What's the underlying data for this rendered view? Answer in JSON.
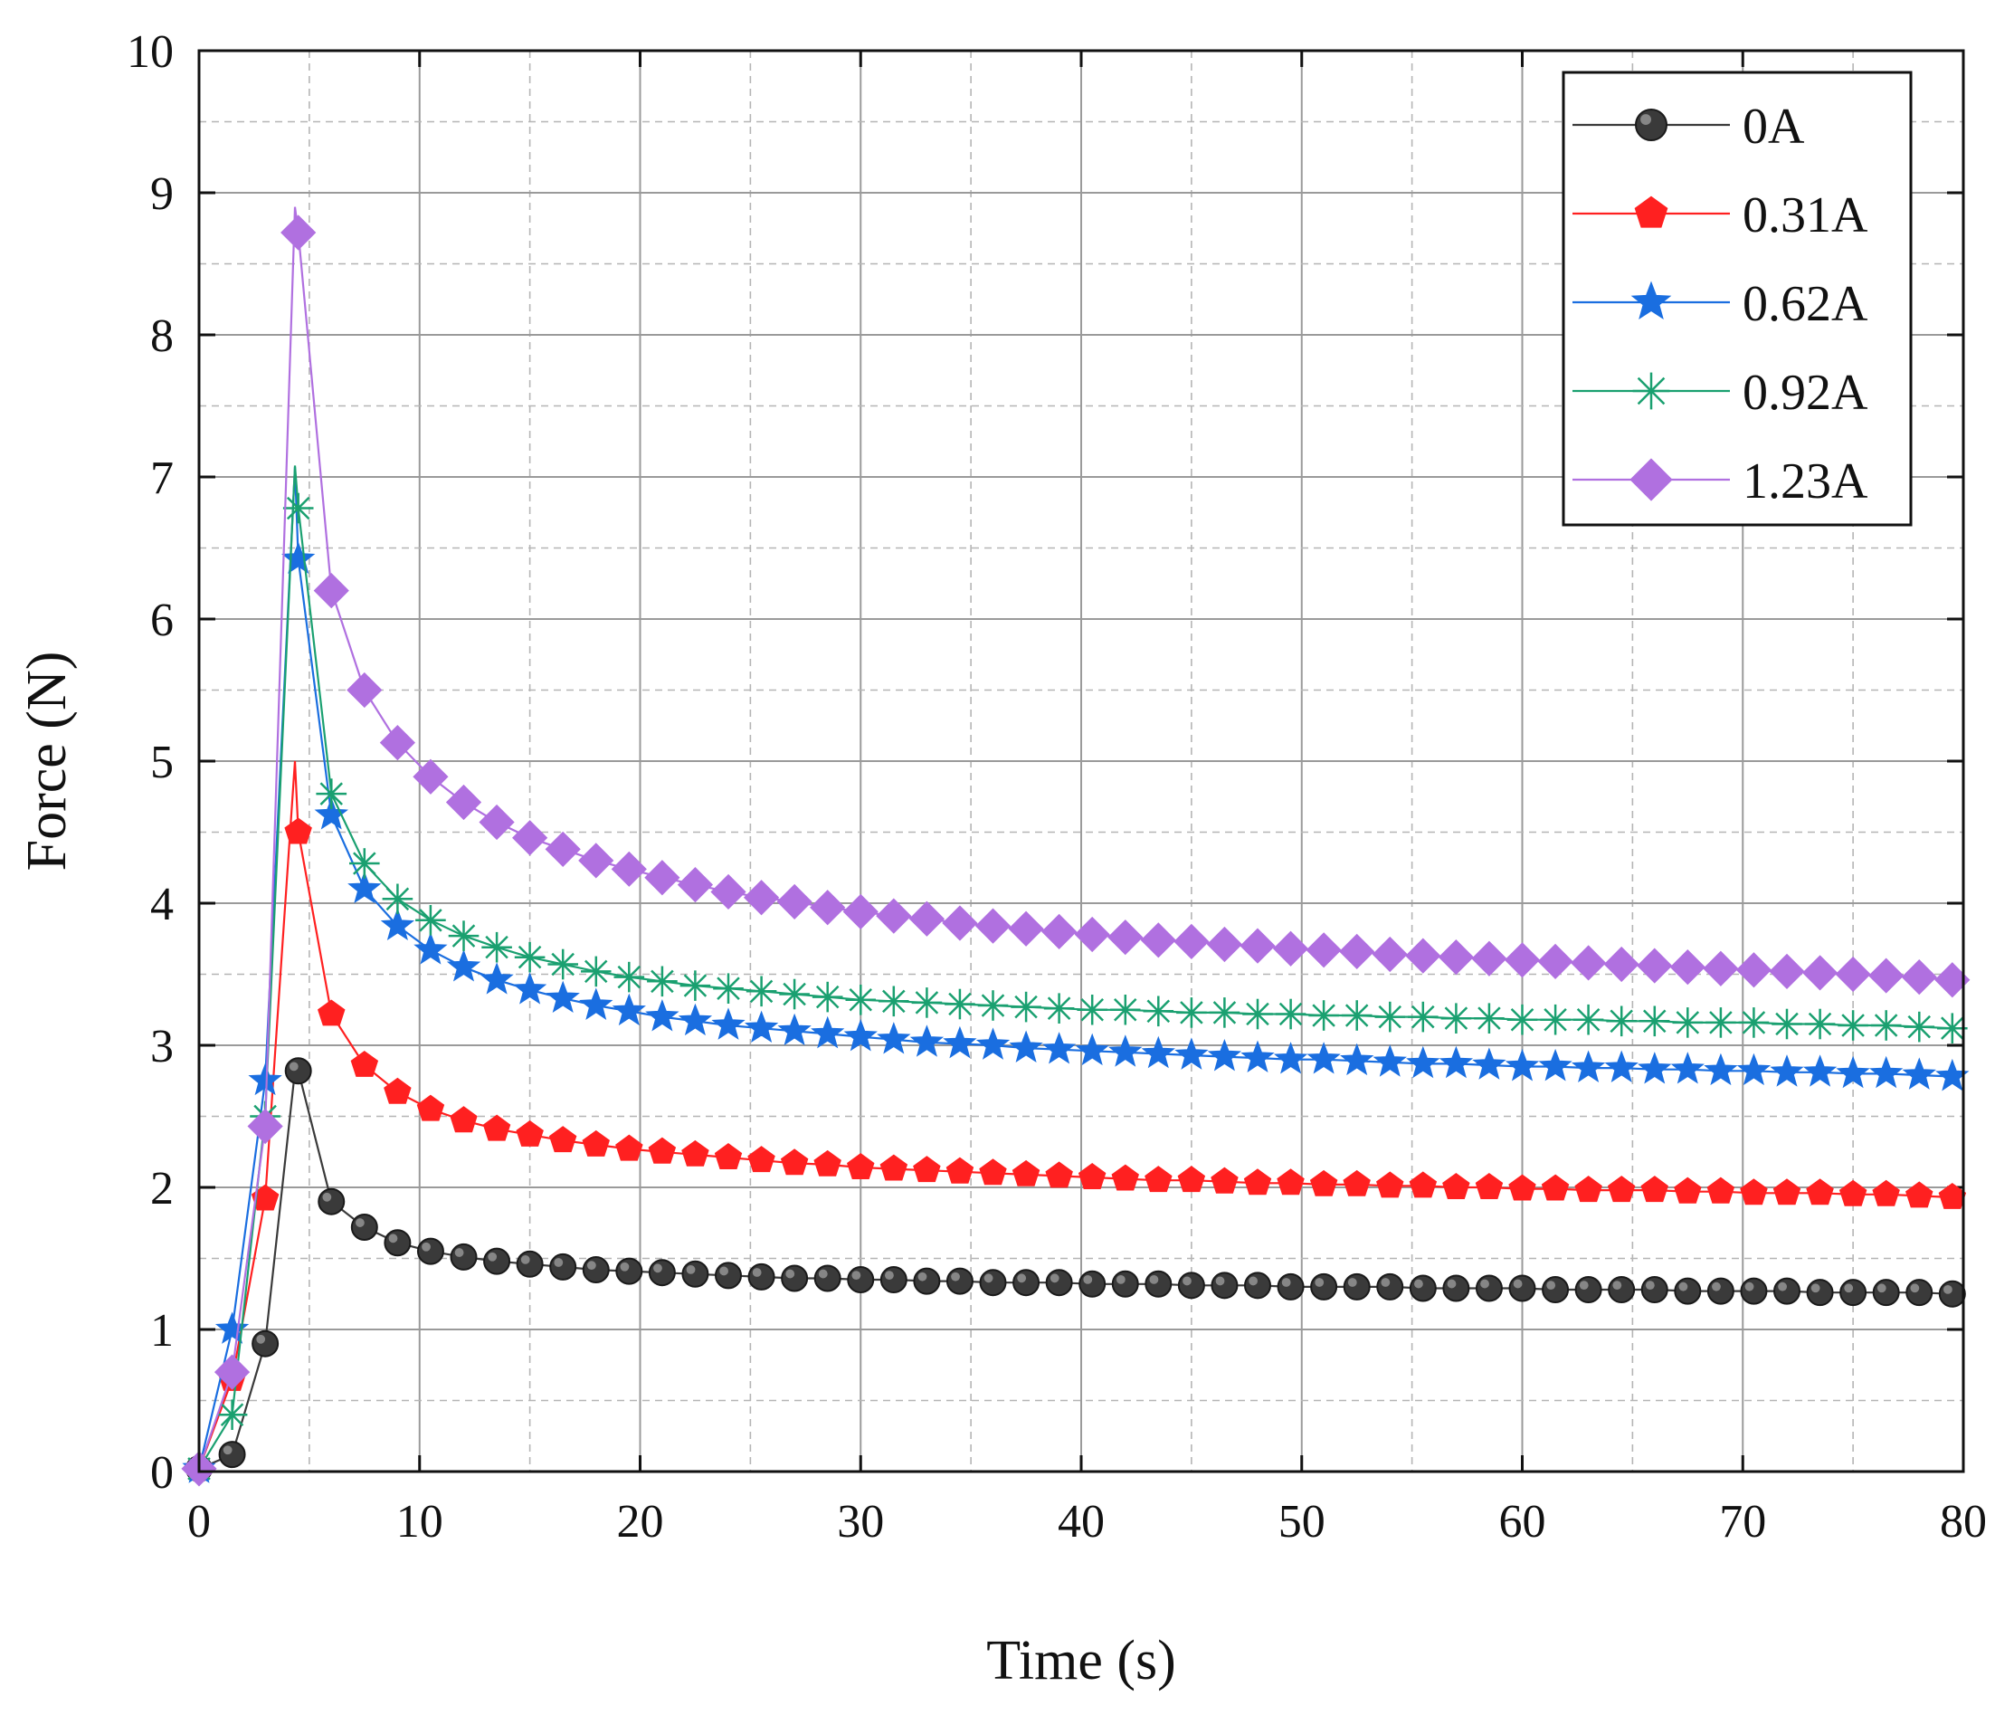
{
  "chart_data": {
    "type": "line",
    "title": "",
    "xlabel": "Time (s)",
    "ylabel": "Force (N)",
    "xlim": [
      0,
      80
    ],
    "ylim": [
      0,
      10
    ],
    "xticks": [
      "0",
      "10",
      "20",
      "30",
      "40",
      "50",
      "60",
      "70",
      "80"
    ],
    "yticks": [
      "0",
      "1",
      "2",
      "3",
      "4",
      "5",
      "6",
      "7",
      "8",
      "9",
      "10"
    ],
    "grid": true,
    "legend_position": "top-right",
    "x": [
      0,
      1.5,
      3.0,
      4.5,
      6.0,
      7.5,
      9.0,
      10.5,
      12.0,
      13.5,
      15.0,
      16.5,
      18.0,
      19.5,
      21.0,
      22.5,
      24.0,
      25.5,
      27.0,
      28.5,
      30.0,
      31.5,
      33.0,
      34.5,
      36.0,
      37.5,
      39.0,
      40.5,
      42.0,
      43.5,
      45.0,
      46.5,
      48.0,
      49.5,
      51.0,
      52.5,
      54.0,
      55.5,
      57.0,
      58.5,
      60.0,
      61.5,
      63.0,
      64.5,
      66.0,
      67.5,
      69.0,
      70.5,
      72.0,
      73.5,
      75.0,
      76.5,
      78.0,
      79.5
    ],
    "series": [
      {
        "name": "0A",
        "color": "#3a3a3a",
        "marker": "circle",
        "values": [
          0.02,
          0.12,
          0.9,
          2.82,
          1.9,
          1.72,
          1.61,
          1.55,
          1.51,
          1.48,
          1.46,
          1.44,
          1.42,
          1.41,
          1.4,
          1.39,
          1.38,
          1.37,
          1.36,
          1.36,
          1.35,
          1.35,
          1.34,
          1.34,
          1.33,
          1.33,
          1.33,
          1.32,
          1.32,
          1.32,
          1.31,
          1.31,
          1.31,
          1.3,
          1.3,
          1.3,
          1.3,
          1.29,
          1.29,
          1.29,
          1.29,
          1.28,
          1.28,
          1.28,
          1.28,
          1.27,
          1.27,
          1.27,
          1.27,
          1.26,
          1.26,
          1.26,
          1.26,
          1.25
        ]
      },
      {
        "name": "0.31A",
        "color": "#ff2020",
        "marker": "pentagon",
        "values": [
          0.02,
          0.65,
          1.92,
          4.5,
          3.22,
          2.86,
          2.67,
          2.55,
          2.47,
          2.41,
          2.37,
          2.33,
          2.3,
          2.27,
          2.25,
          2.23,
          2.21,
          2.19,
          2.17,
          2.16,
          2.14,
          2.13,
          2.12,
          2.11,
          2.1,
          2.09,
          2.08,
          2.07,
          2.06,
          2.05,
          2.05,
          2.04,
          2.03,
          2.03,
          2.02,
          2.02,
          2.01,
          2.01,
          2.0,
          2.0,
          1.99,
          1.99,
          1.98,
          1.98,
          1.98,
          1.97,
          1.97,
          1.96,
          1.96,
          1.96,
          1.95,
          1.95,
          1.94,
          1.93
        ]
      },
      {
        "name": "0.62A",
        "color": "#1a6ee0",
        "marker": "star",
        "values": [
          0.02,
          1.0,
          2.75,
          6.42,
          4.62,
          4.1,
          3.84,
          3.67,
          3.55,
          3.46,
          3.39,
          3.33,
          3.28,
          3.24,
          3.2,
          3.17,
          3.14,
          3.12,
          3.1,
          3.08,
          3.06,
          3.04,
          3.02,
          3.01,
          3.0,
          2.98,
          2.97,
          2.96,
          2.95,
          2.94,
          2.93,
          2.92,
          2.91,
          2.9,
          2.9,
          2.89,
          2.88,
          2.87,
          2.87,
          2.86,
          2.85,
          2.85,
          2.84,
          2.84,
          2.83,
          2.83,
          2.82,
          2.82,
          2.81,
          2.81,
          2.8,
          2.8,
          2.79,
          2.78
        ]
      },
      {
        "name": "0.92A",
        "color": "#1aa070",
        "marker": "asterisk",
        "values": [
          0.02,
          0.4,
          2.5,
          6.78,
          4.77,
          4.28,
          4.03,
          3.88,
          3.77,
          3.69,
          3.62,
          3.57,
          3.52,
          3.48,
          3.45,
          3.42,
          3.4,
          3.38,
          3.36,
          3.34,
          3.32,
          3.31,
          3.3,
          3.29,
          3.28,
          3.27,
          3.26,
          3.25,
          3.25,
          3.24,
          3.23,
          3.23,
          3.22,
          3.22,
          3.21,
          3.21,
          3.2,
          3.2,
          3.19,
          3.19,
          3.18,
          3.18,
          3.18,
          3.17,
          3.17,
          3.16,
          3.16,
          3.16,
          3.15,
          3.15,
          3.14,
          3.14,
          3.13,
          3.12
        ]
      },
      {
        "name": "1.23A",
        "color": "#b070e0",
        "marker": "diamond",
        "values": [
          0.02,
          0.7,
          2.43,
          8.72,
          6.2,
          5.5,
          5.13,
          4.89,
          4.71,
          4.57,
          4.46,
          4.38,
          4.3,
          4.24,
          4.18,
          4.13,
          4.08,
          4.04,
          4.01,
          3.97,
          3.94,
          3.91,
          3.89,
          3.86,
          3.84,
          3.82,
          3.8,
          3.78,
          3.76,
          3.74,
          3.73,
          3.71,
          3.7,
          3.68,
          3.67,
          3.66,
          3.64,
          3.63,
          3.62,
          3.61,
          3.6,
          3.59,
          3.58,
          3.57,
          3.56,
          3.55,
          3.54,
          3.53,
          3.52,
          3.51,
          3.5,
          3.49,
          3.48,
          3.46
        ]
      }
    ]
  }
}
